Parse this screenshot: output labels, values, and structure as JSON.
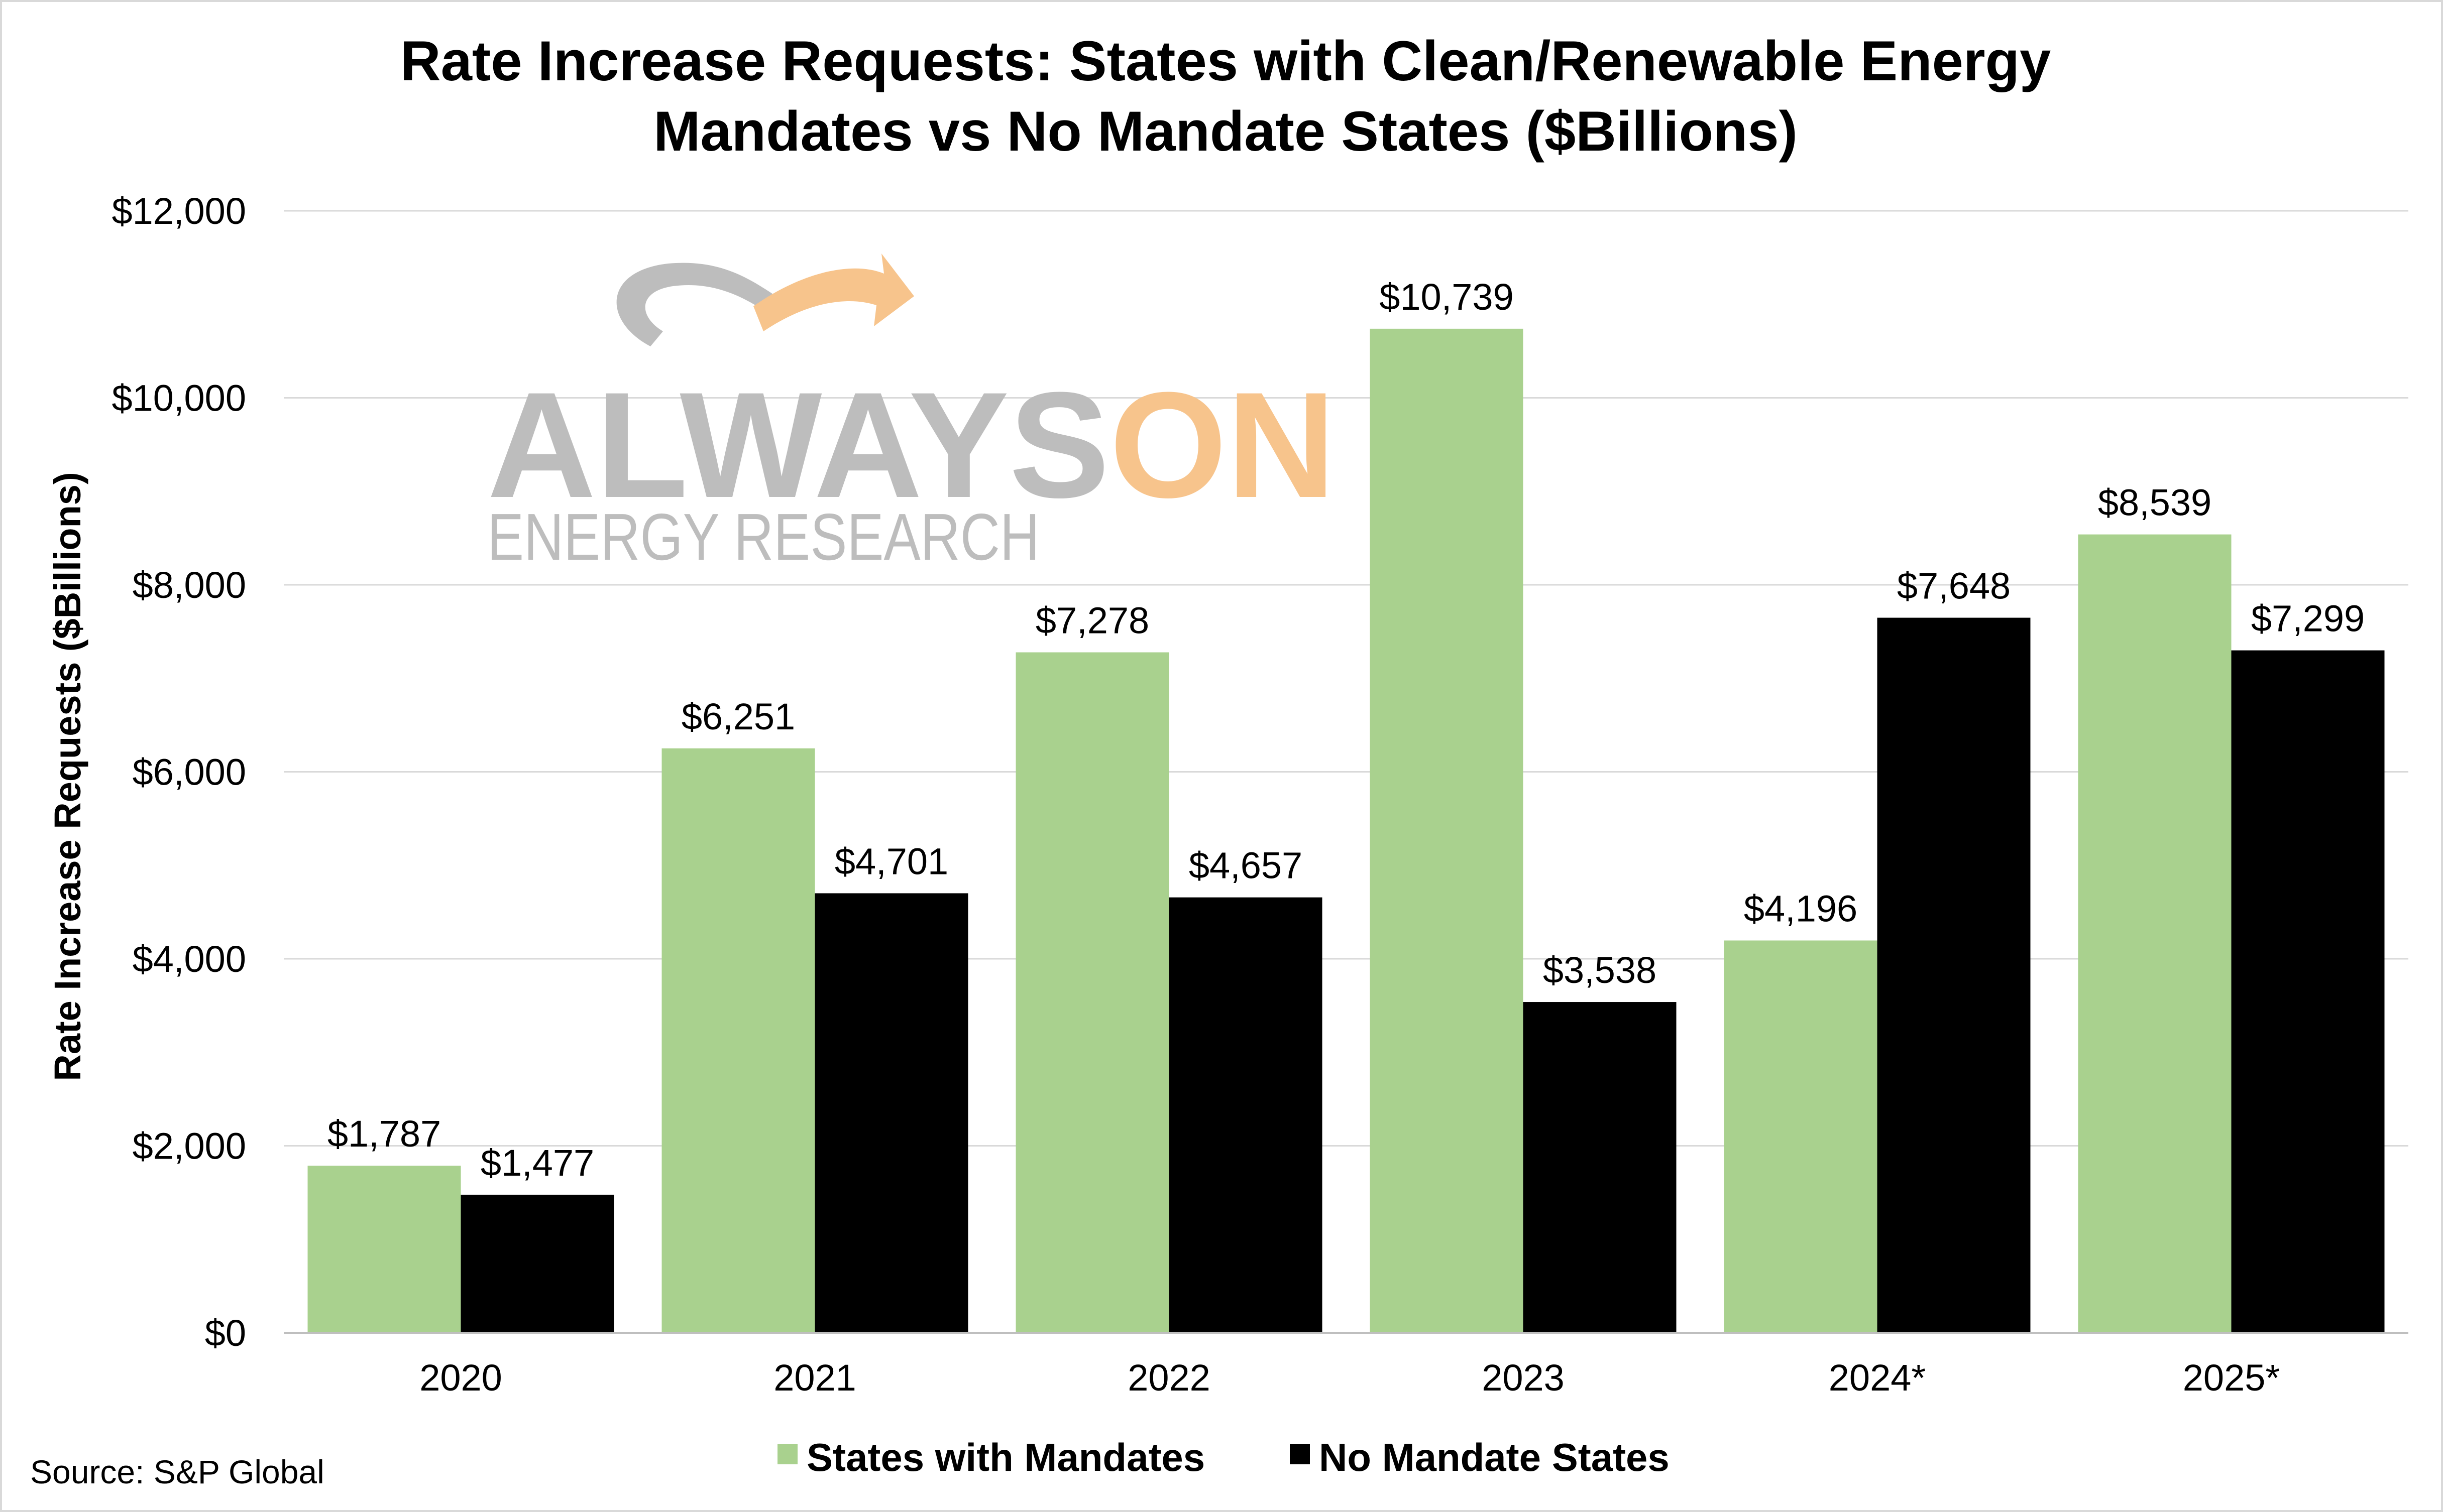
{
  "chart_data": {
    "type": "bar",
    "title_lines": [
      "Rate Increase Requests: States with Clean/Renewable Energy",
      "Mandates vs No Mandate States ($Billions)"
    ],
    "xlabel": "",
    "ylabel": "Rate Increase Requests ($Billions)",
    "ylim": [
      0,
      12000
    ],
    "yticks": [
      0,
      2000,
      4000,
      6000,
      8000,
      10000,
      12000
    ],
    "ytick_labels": [
      "$0",
      "$2,000",
      "$4,000",
      "$6,000",
      "$8,000",
      "$10,000",
      "$12,000"
    ],
    "grid": true,
    "categories": [
      "2020",
      "2021",
      "2022",
      "2023",
      "2024*",
      "2025*"
    ],
    "series": [
      {
        "name": "States with Mandates",
        "color": "#a9d18e",
        "values": [
          1787,
          6251,
          7278,
          10739,
          4196,
          8539
        ],
        "labels": [
          "$1,787",
          "$6,251",
          "$7,278",
          "$10,739",
          "$4,196",
          "$8,539"
        ]
      },
      {
        "name": "No Mandate States",
        "color": "#000000",
        "values": [
          1477,
          4701,
          4657,
          3538,
          7648,
          7299
        ],
        "labels": [
          "$1,477",
          "$4,701",
          "$4,657",
          "$3,538",
          "$7,648",
          "$7,299"
        ]
      }
    ],
    "legend_position": "bottom",
    "source": "Source: S&P Global"
  },
  "watermark": {
    "line1_a": "ALWAYS",
    "line1_b": "ON",
    "line2": "ENERGY RESEARCH",
    "color_gray": "#bdbdbd",
    "color_orange": "#f7c48c"
  },
  "colors": {
    "gridline": "#d9d9d9",
    "axis": "#bfbfbf",
    "border": "#d9d9d9"
  }
}
